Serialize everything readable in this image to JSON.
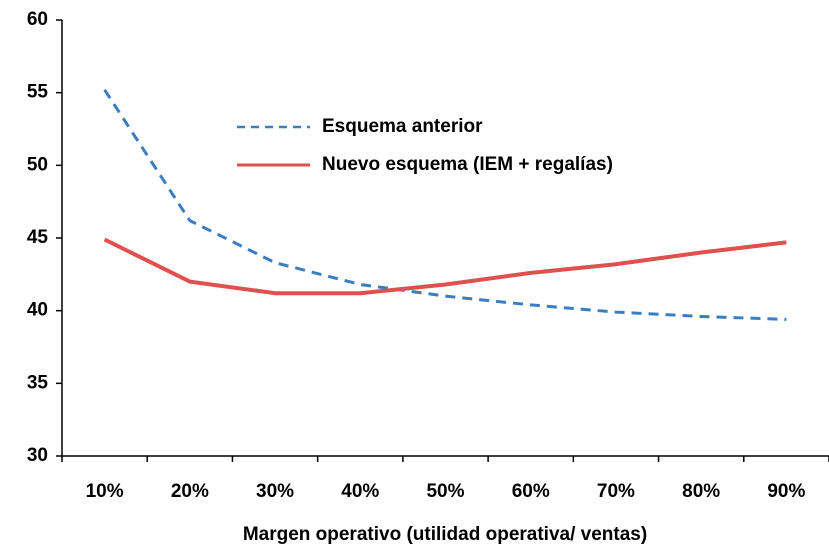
{
  "chart_data": {
    "type": "line",
    "x_label": "Margen operativo (utilidad operativa/ ventas)",
    "categories": [
      "10%",
      "20%",
      "30%",
      "40%",
      "50%",
      "60%",
      "70%",
      "80%",
      "90%"
    ],
    "series": [
      {
        "name": "Esquema anterior",
        "color": "#3a7ebf",
        "dashed": true,
        "values": [
          55.2,
          46.2,
          43.3,
          41.8,
          41.0,
          40.4,
          39.9,
          39.6,
          39.4
        ]
      },
      {
        "name": "Nuevo esquema (IEM +  regalías)",
        "color": "#e0504e",
        "dashed": false,
        "values": [
          44.9,
          42.0,
          41.2,
          41.2,
          41.8,
          42.6,
          43.2,
          44.0,
          44.7
        ]
      }
    ],
    "ylim": [
      30,
      60
    ],
    "yticks": [
      30,
      35,
      40,
      45,
      50,
      55,
      60
    ],
    "legend": "upper center"
  }
}
